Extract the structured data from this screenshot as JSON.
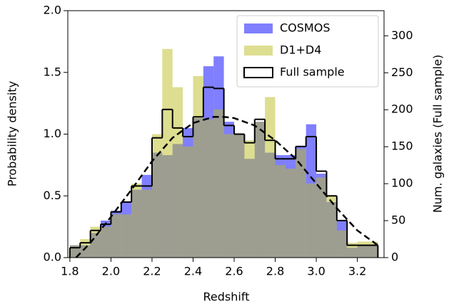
{
  "chart_data": {
    "type": "histogram",
    "xlabel": "Redshift",
    "ylabel": "Probability density",
    "y2label": "Num. galaxies (Full sample)",
    "bins": [
      1.8,
      1.85,
      1.9,
      1.95,
      2.0,
      2.05,
      2.1,
      2.15,
      2.2,
      2.25,
      2.3,
      2.35,
      2.4,
      2.45,
      2.5,
      2.55,
      2.6,
      2.65,
      2.7,
      2.75,
      2.8,
      2.85,
      2.9,
      2.95,
      3.0,
      3.05,
      3.1,
      3.15,
      3.2,
      3.25,
      3.3
    ],
    "alpha": 0.5,
    "series": [
      {
        "name": "COSMOS",
        "color": "#0000ff",
        "style": "filled",
        "values": [
          0.1,
          0.1,
          0.2,
          0.3,
          0.38,
          0.45,
          0.55,
          0.67,
          0.85,
          0.83,
          0.92,
          1.05,
          1.13,
          1.55,
          1.63,
          1.1,
          1.0,
          0.8,
          1.1,
          0.85,
          0.83,
          0.83,
          0.9,
          1.08,
          0.68,
          0.45,
          0.3,
          0.08,
          0.1,
          0.1
        ]
      },
      {
        "name": "D1+D4",
        "color": "#bcbd22",
        "style": "filled",
        "values": [
          0.1,
          0.15,
          0.25,
          0.25,
          0.35,
          0.35,
          0.6,
          0.55,
          1.0,
          1.69,
          1.38,
          0.9,
          1.47,
          1.12,
          1.2,
          1.0,
          1.0,
          0.95,
          1.1,
          1.3,
          0.75,
          0.72,
          0.88,
          0.6,
          0.65,
          0.5,
          0.22,
          0.12,
          0.13,
          0.13
        ]
      },
      {
        "name": "Full sample",
        "color": "#000000",
        "style": "step",
        "values": [
          0.08,
          0.12,
          0.22,
          0.27,
          0.37,
          0.45,
          0.58,
          0.58,
          0.97,
          1.2,
          1.05,
          0.98,
          1.14,
          1.38,
          1.37,
          1.07,
          1.0,
          0.93,
          1.12,
          0.95,
          0.8,
          0.8,
          0.9,
          0.98,
          0.7,
          0.5,
          0.3,
          0.1,
          0.1,
          0.1
        ]
      }
    ],
    "curve": {
      "color": "#000000",
      "linestyle": "dashed",
      "x": [
        1.83,
        1.9,
        2.0,
        2.1,
        2.2,
        2.3,
        2.4,
        2.5,
        2.55,
        2.6,
        2.7,
        2.8,
        2.9,
        3.0,
        3.1,
        3.2,
        3.3
      ],
      "y": [
        0,
        0.12,
        0.33,
        0.55,
        0.78,
        0.97,
        1.09,
        1.14,
        1.14,
        1.13,
        1.07,
        0.95,
        0.8,
        0.6,
        0.4,
        0.22,
        0.1
      ]
    },
    "xlim": [
      1.79,
      3.33
    ],
    "ylim": [
      0,
      2
    ],
    "y2lim": [
      0,
      334
    ],
    "xticks": [
      1.8,
      {
        "value": 2,
        "label": "2.0"
      },
      2.2,
      2.4,
      2.6,
      2.8,
      {
        "value": 3,
        "label": "3.0"
      },
      3.2
    ],
    "yticks": [
      {
        "value": 0,
        "label": "0.0"
      },
      0.5,
      {
        "value": 1,
        "label": "1.0"
      },
      1.5,
      {
        "value": 2,
        "label": "2.0"
      }
    ],
    "y2ticks": [
      0,
      50,
      100,
      150,
      200,
      250,
      300
    ],
    "legend": "upper right"
  }
}
